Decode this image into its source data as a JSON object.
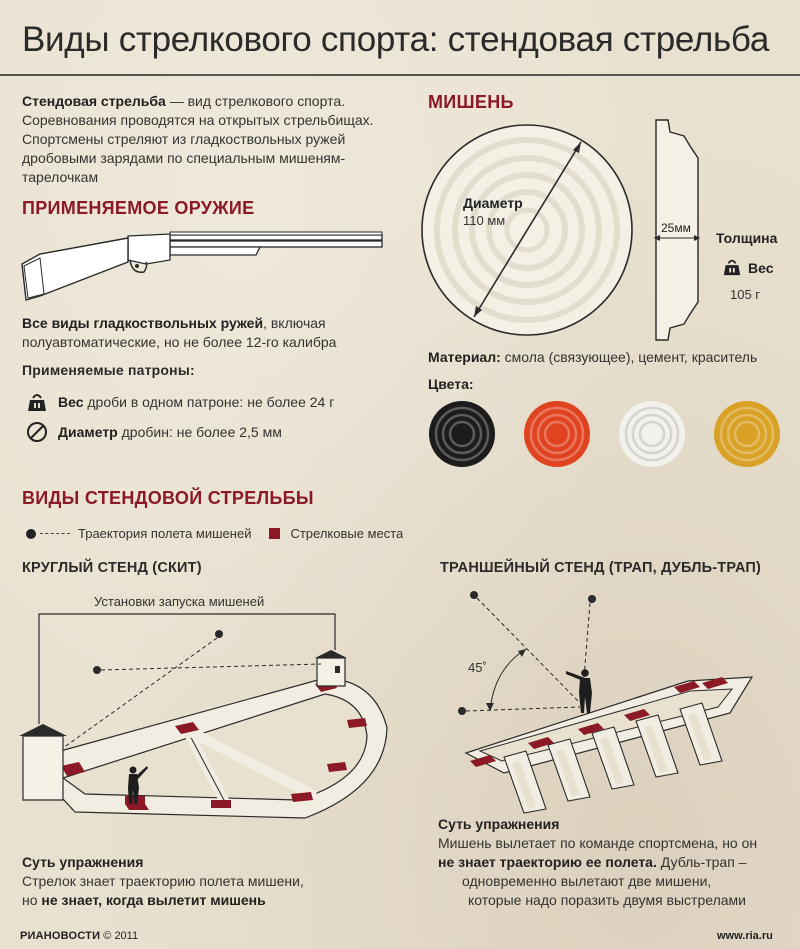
{
  "title": "Виды стрелкового спорта: стендовая стрельба",
  "intro": {
    "term": "Стендовая стрельба",
    "text": " — вид стрелкового спорта. Соревнования проводятся на открытых стрельбищах. Спортсмены стреляют из гладкоствольных ружей дробовыми зарядами по специальным мишеням-тарелочкам"
  },
  "weapons": {
    "heading": "ПРИМЕНЯЕМОЕ ОРУЖИЕ",
    "desc_bold": "Все виды гладкоствольных ружей",
    "desc_rest": ", включая полуавтоматические, но не более 12-го калибра",
    "cartridges_heading": "Применяемые патроны:",
    "weight_label": "Вес",
    "weight_text": " дроби в одном патроне: не более 24 г",
    "diameter_label": "Диаметр",
    "diameter_text": " дробин: не более 2,5 мм"
  },
  "target": {
    "heading": "МИШЕНЬ",
    "diameter_label": "Диаметр",
    "diameter_value": "110 мм",
    "thickness_value": "25мм",
    "thickness_label": "Толщина",
    "weight_label": "Вес",
    "weight_value": "105 г",
    "material_label": "Материал:",
    "material_text": " смола (связующее), цемент, краситель",
    "colors_label": "Цвета:",
    "colors": [
      "#1c1c1c",
      "#e0431f",
      "#f3f1ec",
      "#d9a126"
    ]
  },
  "types": {
    "heading": "ВИДЫ СТЕНДОВОЙ СТРЕЛЬБЫ",
    "legend_trajectory": "Траектория полета мишеней",
    "legend_positions": "Стрелковые места"
  },
  "skeet": {
    "heading": "КРУГЛЫЙ СТЕНД (СКИТ)",
    "launchers_label": "Установки запуска мишеней",
    "essence_heading": "Суть упражнения",
    "essence_text": "Стрелок знает траекторию полета мишени,",
    "essence_line2_pre": "но ",
    "essence_line2_bold": "не знает, когда вылетит мишень"
  },
  "trap": {
    "heading": "ТРАНШЕЙНЫЙ СТЕНД (ТРАП, ДУБЛЬ-ТРАП)",
    "angle_label": "45˚",
    "essence_heading": "Суть упражнения",
    "essence_line1": "Мишень вылетает по команде спортсмена, но он",
    "essence_line2_bold": "не знает траекторию ее полета.",
    "essence_line2_rest": " Дубль-трап –",
    "essence_line3": "одновременно вылетают две мишени,",
    "essence_line4": "которые надо поразить двумя выстрелами"
  },
  "footer": {
    "logo": "РИАНОВОСТИ",
    "copyright": "© 2011",
    "site": "www.ria.ru"
  }
}
